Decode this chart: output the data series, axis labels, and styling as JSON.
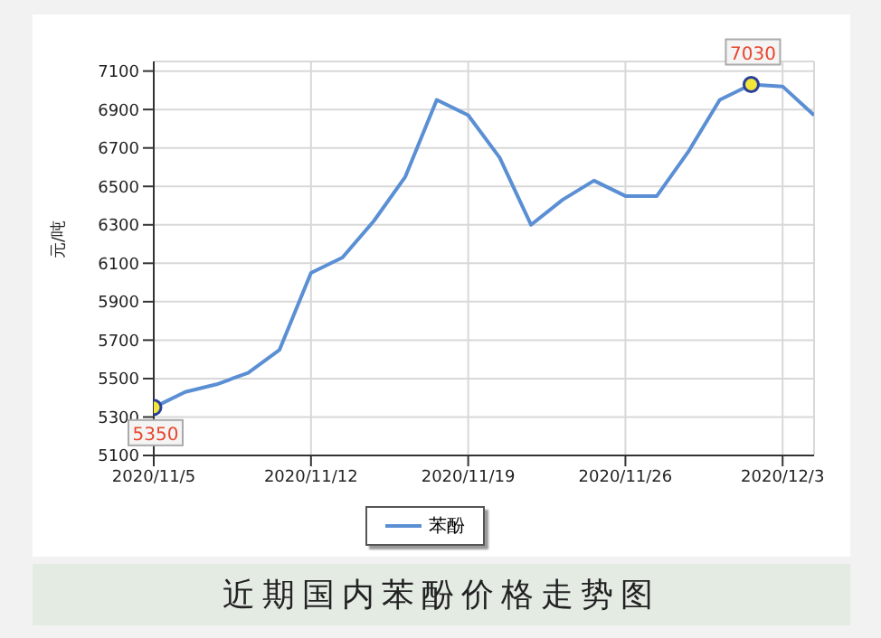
{
  "chart_data": {
    "type": "line",
    "title": "近期国内苯酚价格走势图",
    "ylabel": "元/吨",
    "categories": [
      "2020/11/5",
      null,
      null,
      null,
      null,
      "2020/11/12",
      null,
      null,
      null,
      null,
      "2020/11/19",
      null,
      null,
      null,
      null,
      "2020/11/26",
      null,
      null,
      null,
      null,
      "2020/12/3",
      null
    ],
    "series": [
      {
        "name": "苯酚",
        "color": "#5b8fd4",
        "values": [
          5350,
          5430,
          5470,
          5530,
          5650,
          6050,
          6130,
          6320,
          6550,
          6950,
          6870,
          6650,
          6300,
          6430,
          6530,
          6450,
          6450,
          6680,
          6950,
          7030,
          7020,
          6870
        ],
        "value_labels": [
          "5350",
          null,
          null,
          null,
          null,
          null,
          null,
          null,
          null,
          null,
          null,
          null,
          null,
          null,
          null,
          null,
          null,
          null,
          null,
          "7030",
          null,
          null
        ]
      }
    ],
    "ylim": [
      5100,
      7150
    ],
    "yticks": [
      5100,
      5300,
      5500,
      5700,
      5900,
      6100,
      6300,
      6500,
      6700,
      6900,
      7100
    ],
    "grid": true,
    "legend": "bottom"
  }
}
